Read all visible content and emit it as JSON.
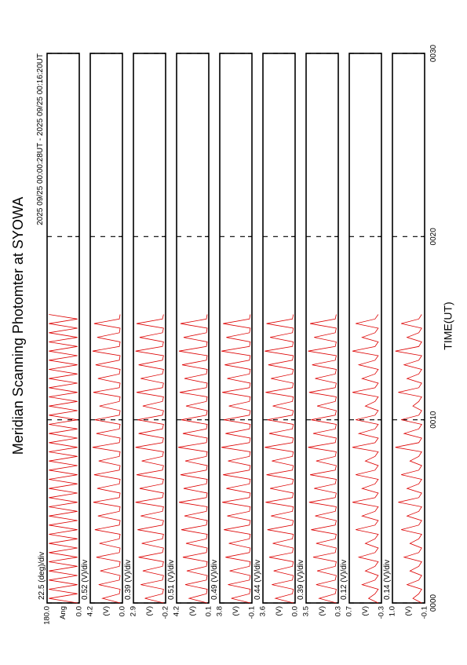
{
  "chart_data": {
    "type": "multi-line",
    "title": "Meridian Scanning Photomter at SYOWA",
    "subtitle": "2025 09/25 00:00:28UT - 2025 09/25 00:16:20UT",
    "xlabel": "TIME(UT)",
    "xlim": [
      0,
      30
    ],
    "xticks": [
      {
        "value": 0,
        "label": "0000"
      },
      {
        "value": 10,
        "label": "0010"
      },
      {
        "value": 20,
        "label": "0020"
      },
      {
        "value": 30,
        "label": "0030"
      }
    ],
    "color": "#dd0000",
    "x": [
      0,
      0.25,
      0.5,
      0.75,
      1,
      1.25,
      1.5,
      1.75,
      2,
      2.25,
      2.5,
      2.75,
      3,
      3.25,
      3.5,
      3.75,
      4,
      4.25,
      4.5,
      4.75,
      5,
      5.25,
      5.5,
      5.75,
      6,
      6.25,
      6.5,
      6.75,
      7,
      7.25,
      7.5,
      7.75,
      8,
      8.25,
      8.5,
      8.75,
      9,
      9.25,
      9.5,
      9.75,
      10,
      10.25,
      10.5,
      10.75,
      11,
      11.25,
      11.5,
      11.75,
      12,
      12.25,
      12.5,
      12.75,
      13,
      13.25,
      13.5,
      13.75,
      14,
      14.25,
      14.5,
      14.75,
      15,
      15.25,
      15.5,
      15.75
    ],
    "panels": [
      {
        "unit": "Ang",
        "scale": "22.5 (deg)/div",
        "ylim": [
          0,
          180
        ],
        "yticks": [
          {
            "value": 0,
            "label": "0.0"
          },
          {
            "value": 180,
            "label": "180.0"
          }
        ],
        "values": [
          10,
          170,
          10,
          170,
          10,
          170,
          10,
          170,
          10,
          170,
          10,
          170,
          10,
          170,
          10,
          170,
          10,
          170,
          10,
          170,
          10,
          170,
          10,
          170,
          10,
          170,
          10,
          170,
          10,
          170,
          10,
          170,
          10,
          170,
          10,
          170,
          10,
          170,
          10,
          170,
          10,
          170,
          10,
          170,
          10,
          170,
          10,
          170,
          10,
          170,
          10,
          170,
          10,
          170,
          10,
          170,
          10,
          170,
          10,
          170,
          10,
          170,
          10,
          170
        ]
      },
      {
        "unit": "(V)",
        "scale": "0.52 (V)/div",
        "ylim": [
          0,
          4.2
        ],
        "yticks": [
          {
            "value": 0,
            "label": "0.0"
          },
          4.2
        ],
        "values": [
          0.3,
          2.6,
          0.4,
          0.3,
          3.1,
          0.4,
          0.3,
          2.9,
          0.4,
          0.3,
          3.4,
          0.4,
          0.3,
          3.0,
          0.4,
          0.3,
          3.6,
          0.4,
          0.3,
          3.2,
          0.4,
          0.3,
          3.8,
          0.4,
          0.3,
          3.3,
          0.4,
          0.3,
          3.7,
          0.4,
          0.3,
          3.1,
          0.4,
          0.3,
          3.9,
          0.4,
          0.3,
          3.4,
          0.4,
          0.3,
          3.6,
          0.4,
          0.3,
          3.0,
          0.4,
          0.3,
          3.8,
          0.4,
          0.3,
          3.2,
          0.4,
          0.3,
          3.5,
          0.4,
          0.3,
          3.9,
          0.4,
          0.3,
          3.3,
          0.4,
          0.3,
          3.7,
          0.4,
          0.3
        ]
      },
      {
        "unit": "(V)",
        "scale": "0.39 (V)/div",
        "ylim": [
          -0.2,
          2.9
        ],
        "yticks": [
          -0.2,
          2.9
        ],
        "values": [
          0.0,
          1.8,
          0.1,
          0.0,
          2.2,
          0.1,
          0.0,
          2.0,
          0.1,
          0.0,
          2.4,
          0.1,
          0.0,
          2.1,
          0.1,
          0.0,
          2.5,
          0.1,
          0.0,
          2.2,
          0.1,
          0.0,
          2.7,
          0.1,
          0.0,
          2.3,
          0.1,
          0.0,
          2.6,
          0.1,
          0.0,
          2.1,
          0.1,
          0.0,
          2.7,
          0.1,
          0.0,
          2.4,
          0.1,
          0.0,
          2.5,
          0.1,
          0.0,
          2.0,
          0.1,
          0.0,
          2.6,
          0.1,
          0.0,
          2.2,
          0.1,
          0.0,
          2.4,
          0.1,
          0.0,
          2.7,
          0.1,
          0.0,
          2.3,
          0.1,
          0.0,
          2.6,
          0.1,
          0.0
        ]
      },
      {
        "unit": "(V)",
        "scale": "0.51 (V)/div",
        "ylim": [
          0.1,
          4.2
        ],
        "yticks": [
          0.1,
          4.2
        ],
        "values": [
          0.3,
          2.6,
          0.4,
          0.3,
          3.1,
          0.4,
          0.3,
          2.9,
          0.4,
          0.3,
          3.4,
          0.4,
          0.3,
          3.0,
          0.4,
          0.3,
          3.6,
          0.4,
          0.3,
          3.2,
          0.4,
          0.3,
          3.9,
          0.4,
          0.3,
          3.3,
          0.4,
          0.3,
          3.7,
          0.4,
          0.3,
          3.1,
          0.4,
          0.3,
          4.0,
          0.4,
          0.3,
          3.4,
          0.4,
          0.3,
          3.6,
          0.4,
          0.3,
          3.0,
          0.4,
          0.3,
          3.8,
          0.4,
          0.3,
          3.2,
          0.4,
          0.3,
          3.5,
          0.4,
          0.3,
          3.9,
          0.4,
          0.3,
          3.3,
          0.4,
          0.3,
          3.7,
          0.4,
          0.3
        ]
      },
      {
        "unit": "(V)",
        "scale": "0.49 (V)/div",
        "ylim": [
          -0.1,
          3.8
        ],
        "yticks": [
          -0.1,
          3.8
        ],
        "values": [
          0.1,
          2.4,
          0.2,
          0.1,
          2.8,
          0.2,
          0.1,
          2.6,
          0.2,
          0.1,
          3.1,
          0.2,
          0.1,
          2.7,
          0.2,
          0.1,
          3.3,
          0.2,
          0.1,
          2.9,
          0.2,
          0.1,
          3.5,
          0.2,
          0.1,
          3.0,
          0.2,
          0.1,
          3.4,
          0.2,
          0.1,
          2.8,
          0.2,
          0.1,
          3.6,
          0.2,
          0.1,
          3.1,
          0.2,
          0.1,
          3.3,
          0.2,
          0.1,
          2.7,
          0.2,
          0.1,
          3.5,
          0.2,
          0.1,
          2.9,
          0.2,
          0.1,
          3.2,
          0.2,
          0.1,
          3.6,
          0.2,
          0.1,
          3.0,
          0.2,
          0.1,
          3.4,
          0.2,
          0.1
        ]
      },
      {
        "unit": "(V)",
        "scale": "0.44 (V)/div",
        "ylim": [
          0,
          3.6
        ],
        "yticks": [
          {
            "value": 0,
            "label": "0.0"
          },
          3.6
        ],
        "values": [
          0.2,
          2.2,
          0.3,
          0.2,
          2.6,
          0.3,
          0.2,
          2.4,
          0.3,
          0.2,
          2.9,
          0.3,
          0.2,
          2.5,
          0.3,
          0.2,
          3.1,
          0.3,
          0.2,
          2.7,
          0.3,
          0.2,
          3.3,
          0.3,
          0.2,
          2.8,
          0.3,
          0.2,
          3.2,
          0.3,
          0.2,
          2.6,
          0.3,
          0.2,
          3.4,
          0.3,
          0.2,
          2.9,
          0.3,
          0.2,
          3.1,
          0.3,
          0.2,
          2.5,
          0.3,
          0.2,
          3.3,
          0.3,
          0.2,
          2.7,
          0.3,
          0.2,
          3.0,
          0.3,
          0.2,
          3.4,
          0.3,
          0.2,
          2.8,
          0.3,
          0.2,
          3.2,
          0.3,
          0.2
        ]
      },
      {
        "unit": "(V)",
        "scale": "0.39 (V)/div",
        "ylim": [
          0.3,
          3.5
        ],
        "yticks": [
          0.3,
          3.5
        ],
        "values": [
          0.5,
          2.2,
          0.6,
          0.5,
          2.5,
          0.6,
          0.5,
          2.4,
          0.6,
          0.5,
          2.8,
          0.6,
          0.5,
          2.5,
          0.6,
          0.5,
          3.0,
          0.6,
          0.5,
          2.6,
          0.6,
          0.5,
          3.2,
          0.6,
          0.5,
          2.7,
          0.6,
          0.5,
          3.1,
          0.6,
          0.5,
          2.5,
          0.6,
          0.5,
          3.3,
          0.6,
          0.5,
          2.8,
          0.6,
          0.5,
          3.0,
          0.6,
          0.5,
          2.4,
          0.6,
          0.5,
          3.2,
          0.6,
          0.5,
          2.6,
          0.6,
          0.5,
          2.9,
          0.6,
          0.5,
          3.3,
          0.6,
          0.5,
          2.7,
          0.6,
          0.5,
          3.1,
          0.6,
          0.5
        ]
      },
      {
        "unit": "(V)",
        "scale": "0.12 (V)/div",
        "ylim": [
          -0.3,
          0.7
        ],
        "yticks": [
          -0.3,
          0.7
        ],
        "values": [
          -0.2,
          0.1,
          -0.1,
          -0.2,
          0.3,
          -0.1,
          -0.2,
          0.2,
          -0.1,
          -0.2,
          0.4,
          -0.1,
          -0.2,
          0.2,
          -0.1,
          -0.2,
          0.5,
          -0.1,
          -0.2,
          0.3,
          -0.1,
          -0.2,
          0.6,
          -0.1,
          -0.2,
          0.3,
          -0.1,
          -0.2,
          0.5,
          -0.1,
          -0.2,
          0.2,
          -0.1,
          -0.2,
          0.6,
          -0.1,
          -0.2,
          0.4,
          -0.1,
          -0.2,
          0.5,
          -0.1,
          -0.2,
          0.2,
          -0.1,
          -0.2,
          0.6,
          -0.1,
          -0.2,
          0.3,
          -0.1,
          -0.2,
          0.4,
          -0.1,
          -0.2,
          0.6,
          -0.1,
          -0.2,
          0.3,
          -0.1,
          -0.2,
          0.5,
          -0.1,
          -0.2
        ]
      },
      {
        "unit": "(V)",
        "scale": "0.14 (V)/div",
        "ylim": [
          -0.1,
          1.0
        ],
        "yticks": [
          -0.1,
          {
            "value": 1.0,
            "label": "1.0"
          }
        ],
        "values": [
          0.0,
          0.3,
          0.1,
          0.0,
          0.5,
          0.1,
          0.0,
          0.4,
          0.1,
          0.0,
          0.6,
          0.1,
          0.0,
          0.4,
          0.1,
          0.0,
          0.7,
          0.1,
          0.0,
          0.5,
          0.1,
          0.0,
          0.8,
          0.1,
          0.0,
          0.5,
          0.1,
          0.0,
          0.7,
          0.1,
          0.0,
          0.4,
          0.1,
          0.0,
          0.9,
          0.1,
          0.0,
          0.6,
          0.1,
          0.0,
          0.7,
          0.1,
          0.0,
          0.3,
          0.1,
          0.0,
          0.8,
          0.1,
          0.0,
          0.5,
          0.1,
          0.0,
          0.6,
          0.1,
          0.0,
          0.9,
          0.1,
          0.0,
          0.5,
          0.1,
          0.0,
          0.7,
          0.1,
          0.0
        ]
      }
    ]
  }
}
